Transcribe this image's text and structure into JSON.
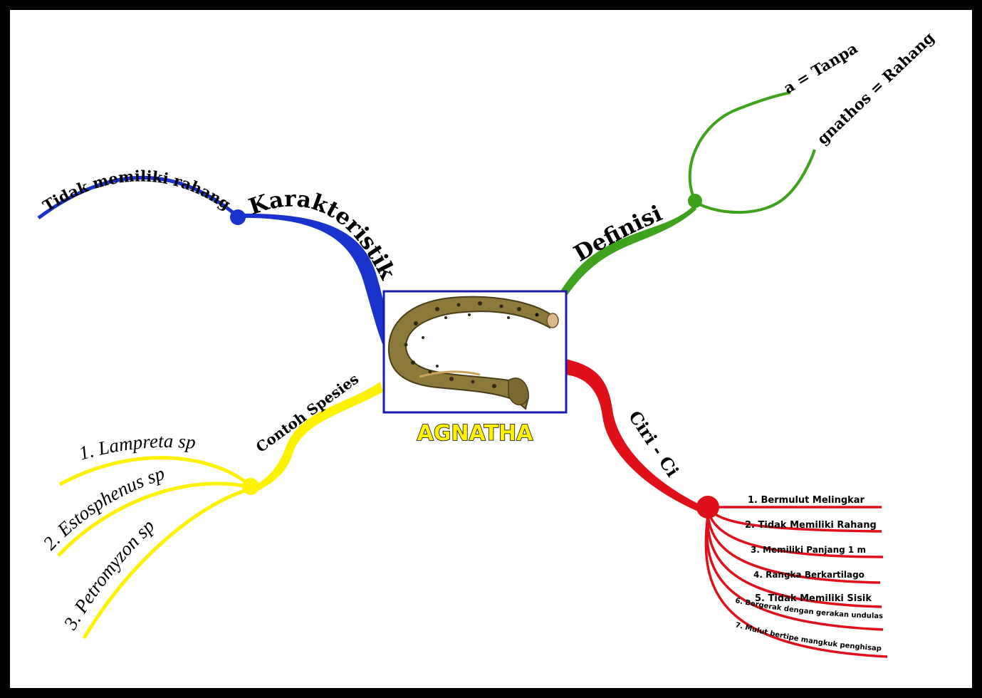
{
  "central": {
    "title": "AGNATHA",
    "title_color": "#FFF200",
    "frame_color": "#1B1BB0",
    "image_icon": "lamprey-fish-image"
  },
  "branches": {
    "karakteristik": {
      "label": "Karakteristik",
      "color": "#1A33CC",
      "items": [
        "Tidak memiliki rahang"
      ]
    },
    "definisi": {
      "label": "Definisi",
      "color": "#3FA21C",
      "items": [
        "a = Tanpa",
        "gnathos = Rahang"
      ]
    },
    "ciri": {
      "label": "Ciri - Ciri",
      "color": "#E0101A",
      "items": [
        "1. Bermulut Melingkar",
        "2. Tidak Memiliki Rahang",
        "3. Memiliki Panjang  1 m",
        "4. Rangka Berkartilago",
        "5. Tidak Memiliki Sisik",
        "6. Bergerak dengan gerakan undulasi",
        "7. Mulut bertipe mangkuk penghisap"
      ]
    },
    "contoh": {
      "label": "Contoh Spesies",
      "color": "#FFF200",
      "items": [
        "1. Lampreta sp",
        "2. Estosphenus sp",
        "3. Petromyzon sp"
      ]
    }
  }
}
